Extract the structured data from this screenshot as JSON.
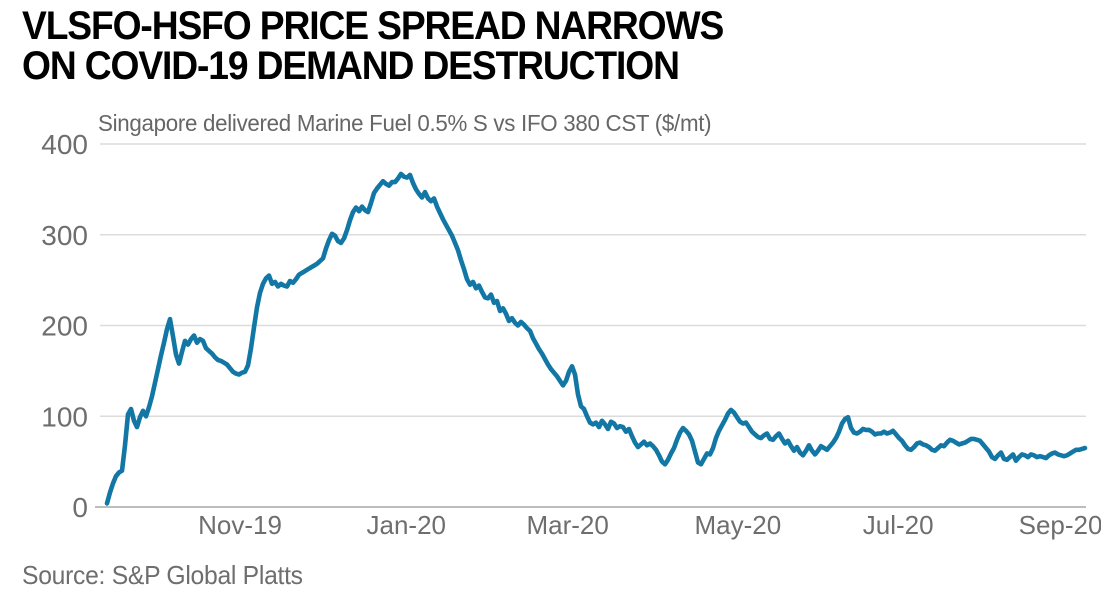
{
  "header": {
    "title_line1": "VLSFO-HSFO PRICE SPREAD NARROWS",
    "title_line2": "ON COVID-19 DEMAND DESTRUCTION"
  },
  "source": {
    "text": "Source: S&P Global Platts"
  },
  "colors": {
    "line": "#1277a4",
    "title": "#000000",
    "muted_text": "#6e6e6e",
    "gridline": "#dcdcdc",
    "axis_line": "#bdbdbd",
    "background": "#ffffff"
  },
  "chart_data": {
    "type": "line",
    "title": "VLSFO-HSFO PRICE SPREAD NARROWS ON COVID-19 DEMAND DESTRUCTION",
    "subtitle": "Singapore delivered Marine Fuel 0.5% S vs IFO 380 CST ($/mt)",
    "xlabel": "",
    "ylabel": "$/mt",
    "ylim": [
      0,
      400
    ],
    "y_ticks": [
      0,
      100,
      200,
      300,
      400
    ],
    "grid": "horizontal",
    "legend": "none",
    "x_ticks": [
      {
        "label": "Nov-19",
        "pos": 0.136
      },
      {
        "label": "Jan-20",
        "pos": 0.306
      },
      {
        "label": "Mar-20",
        "pos": 0.471
      },
      {
        "label": "May-20",
        "pos": 0.645
      },
      {
        "label": "Jul-20",
        "pos": 0.809
      },
      {
        "label": "Sep-20",
        "pos": 0.975
      }
    ],
    "x_range_note": "daily values, mid-Sep-2019 through mid-Sep-2020, evenly spaced",
    "series": [
      {
        "name": "Singapore Marine Fuel 0.5% S vs IFO 380 CST spread ($/mt)",
        "color": "#1277a4",
        "values": [
          4,
          16,
          26,
          34,
          38,
          40,
          68,
          102,
          108,
          95,
          88,
          99,
          106,
          100,
          110,
          122,
          137,
          152,
          167,
          181,
          196,
          207,
          188,
          168,
          158,
          171,
          183,
          179,
          185,
          189,
          181,
          185,
          183,
          175,
          172,
          169,
          165,
          162,
          161,
          159,
          157,
          153,
          149,
          147,
          146,
          148,
          149,
          156,
          175,
          198,
          220,
          236,
          246,
          252,
          255,
          246,
          248,
          243,
          246,
          244,
          243,
          249,
          247,
          251,
          256,
          258,
          260,
          262,
          264,
          266,
          268,
          271,
          274,
          285,
          294,
          301,
          299,
          293,
          291,
          296,
          305,
          316,
          325,
          330,
          326,
          331,
          327,
          325,
          335,
          346,
          351,
          355,
          359,
          356,
          354,
          358,
          358,
          362,
          367,
          364,
          363,
          366,
          357,
          350,
          345,
          341,
          347,
          340,
          337,
          340,
          331,
          324,
          317,
          311,
          305,
          299,
          291,
          283,
          272,
          262,
          251,
          245,
          248,
          241,
          244,
          237,
          231,
          230,
          234,
          225,
          227,
          216,
          219,
          213,
          205,
          208,
          203,
          200,
          204,
          201,
          197,
          194,
          186,
          180,
          174,
          169,
          163,
          157,
          152,
          148,
          144,
          139,
          134,
          139,
          149,
          155,
          146,
          124,
          111,
          108,
          100,
          93,
          91,
          93,
          88,
          95,
          91,
          86,
          94,
          92,
          87,
          89,
          88,
          83,
          86,
          78,
          71,
          66,
          69,
          72,
          68,
          70,
          67,
          63,
          57,
          50,
          47,
          52,
          59,
          65,
          74,
          82,
          87,
          84,
          80,
          73,
          61,
          49,
          47,
          53,
          59,
          58,
          65,
          76,
          84,
          90,
          96,
          103,
          107,
          104,
          99,
          94,
          92,
          93,
          88,
          83,
          80,
          77,
          76,
          79,
          81,
          75,
          74,
          78,
          81,
          75,
          70,
          73,
          67,
          62,
          66,
          60,
          57,
          62,
          68,
          62,
          58,
          62,
          67,
          65,
          63,
          67,
          71,
          76,
          83,
          92,
          97,
          99,
          87,
          82,
          81,
          83,
          86,
          85,
          85,
          83,
          80,
          81,
          81,
          83,
          81,
          82,
          84,
          80,
          76,
          73,
          68,
          64,
          63,
          66,
          70,
          71,
          69,
          68,
          66,
          63,
          62,
          65,
          68,
          67,
          71,
          74,
          73,
          71,
          69,
          70,
          71,
          73,
          75,
          75,
          74,
          73,
          69,
          65,
          61,
          55,
          53,
          57,
          60,
          53,
          52,
          55,
          58,
          51,
          55,
          58,
          57,
          55,
          58,
          57,
          55,
          56,
          55,
          54,
          57,
          59,
          60,
          58,
          57,
          56,
          57,
          59,
          61,
          63,
          63,
          64,
          65
        ]
      }
    ]
  }
}
